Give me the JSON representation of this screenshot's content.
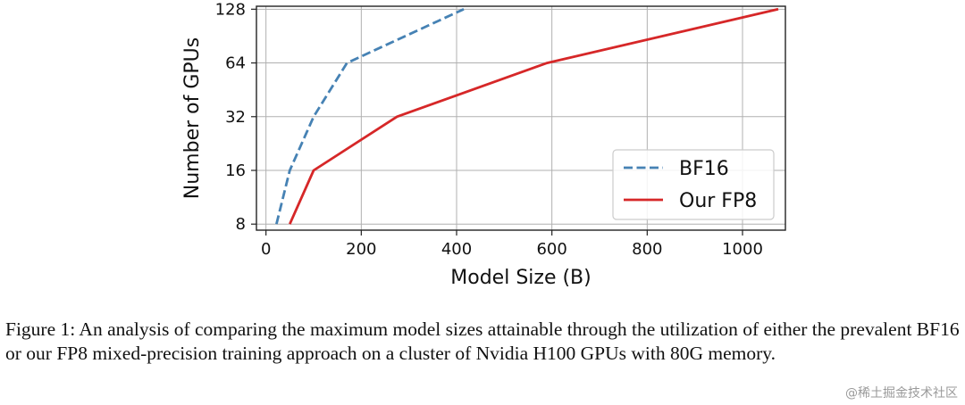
{
  "chart_data": {
    "type": "line",
    "xlabel": "Model Size (B)",
    "ylabel": "Number of GPUs",
    "xlim": [
      -20,
      1090
    ],
    "ylim_log2": [
      7.4,
      133
    ],
    "yscale": "log2",
    "xticks": [
      0,
      200,
      400,
      600,
      800,
      1000
    ],
    "xtick_labels": [
      "0",
      "200",
      "400",
      "600",
      "800",
      "1000"
    ],
    "yticks": [
      8,
      16,
      32,
      64,
      128
    ],
    "ytick_labels": [
      "8",
      "16",
      "32",
      "64",
      "128"
    ],
    "grid": true,
    "legend_location": "lower-right",
    "series": [
      {
        "name": "BF16",
        "color": "#4682b4",
        "style": "dashed",
        "x": [
          22,
          50,
          100,
          170,
          415
        ],
        "y": [
          8,
          16,
          32,
          64,
          128
        ]
      },
      {
        "name": "Our FP8",
        "color": "#d62728",
        "style": "solid",
        "x": [
          50,
          100,
          275,
          590,
          1075
        ],
        "y": [
          8,
          16,
          32,
          64,
          128
        ]
      }
    ]
  },
  "caption": "Figure 1: An analysis of comparing the maximum model sizes attainable through the utilization of either the prevalent BF16 or our FP8 mixed-precision training approach on a cluster of Nvidia H100 GPUs with 80G memory.",
  "watermark": "@稀土掘金技术社区"
}
